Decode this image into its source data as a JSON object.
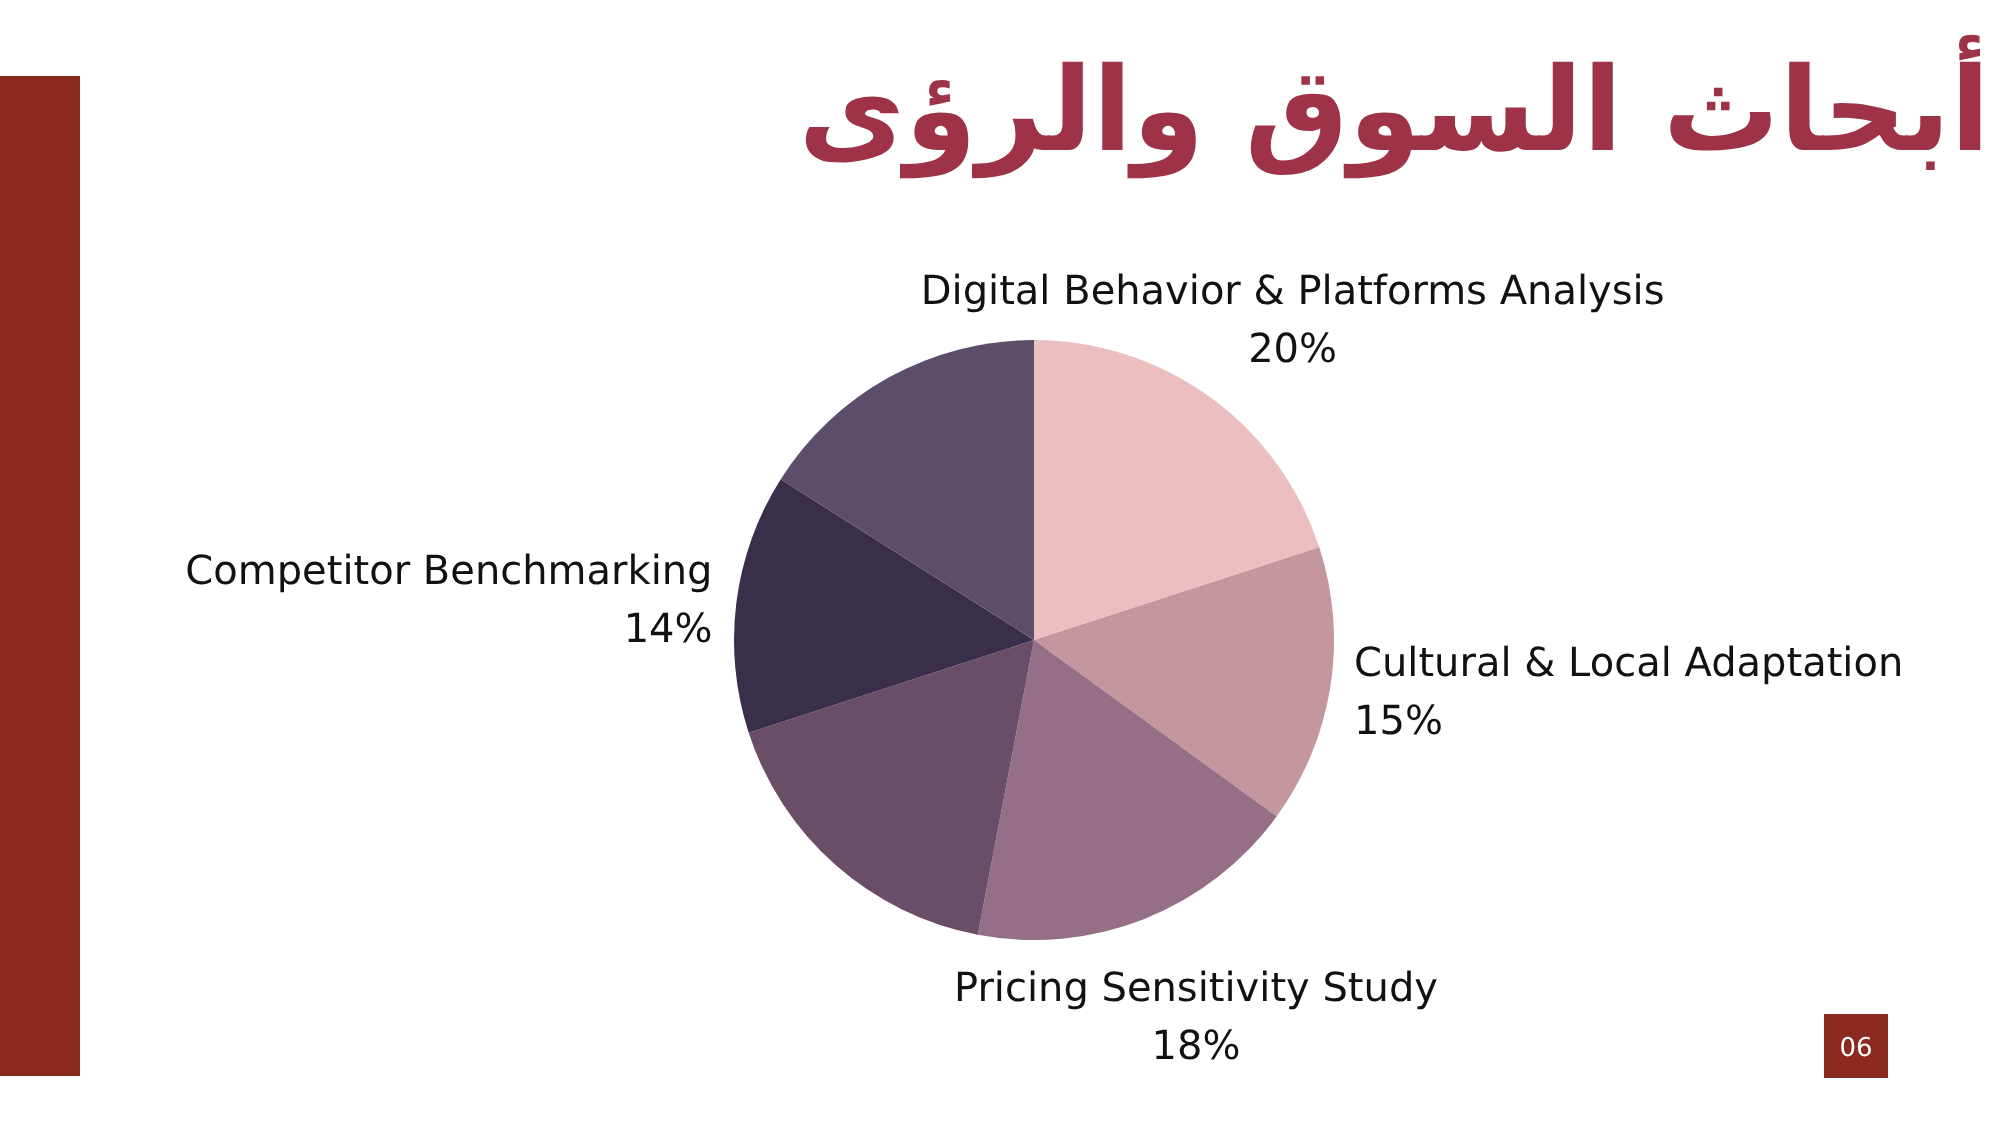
{
  "chart_data": {
    "type": "pie",
    "title": "أبحاث السوق والرؤى",
    "categories": [
      "Digital Behavior & Platforms Analysis",
      "Cultural & Local Adaptation",
      "Pricing Sensitivity Study",
      null,
      "Competitor Benchmarking",
      null
    ],
    "values": [
      20,
      15,
      18,
      17,
      14,
      16
    ],
    "value_labels": [
      "20%",
      "15%",
      "18%",
      null,
      "14%",
      null
    ],
    "colors": [
      "#ebbfbf",
      "#c4979f",
      "#946f85",
      "#6a4e68",
      "#3a2f4b",
      "#5c4e6b"
    ],
    "annotations": [
      "06"
    ]
  }
}
